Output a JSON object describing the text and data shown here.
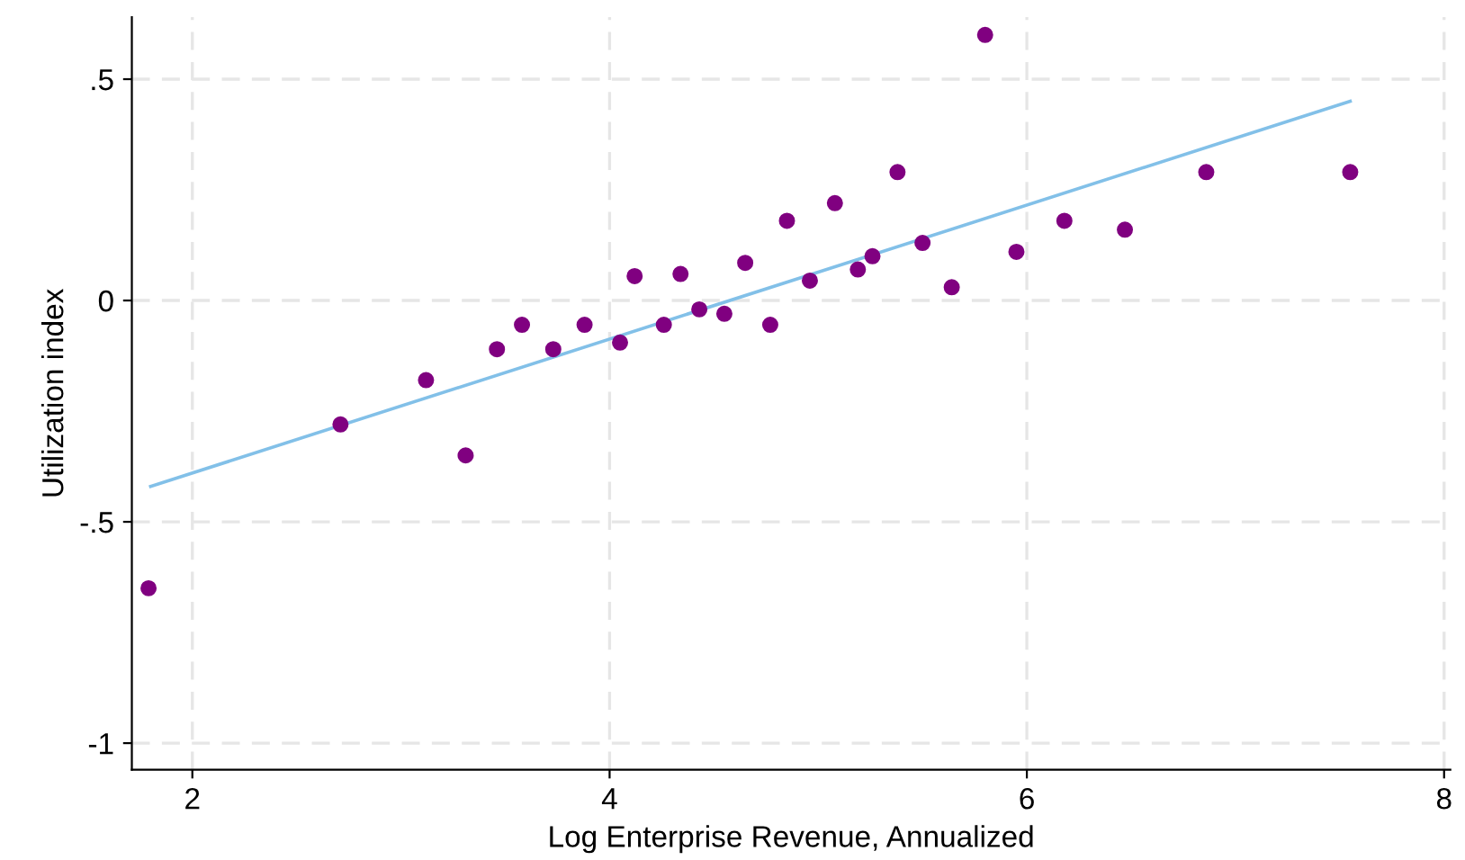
{
  "chart_data": {
    "type": "scatter",
    "xlabel": "Log Enterprise Revenue, Annualized",
    "ylabel": "Utilization index",
    "xlim": [
      1.71,
      8.03
    ],
    "ylim": [
      -1.06,
      0.64
    ],
    "xticks": [
      2,
      4,
      6,
      8
    ],
    "yticks": [
      {
        "value": -1,
        "label": "-1"
      },
      {
        "value": -0.5,
        "label": "-.5"
      },
      {
        "value": 0,
        "label": "0"
      },
      {
        "value": 0.5,
        "label": ".5"
      }
    ],
    "grid": true,
    "series": [
      {
        "color": "#800080",
        "marker": "circle",
        "x": [
          1.79,
          2.71,
          3.12,
          3.31,
          3.46,
          3.58,
          3.73,
          3.88,
          4.05,
          4.12,
          4.26,
          4.34,
          4.43,
          4.55,
          4.65,
          4.77,
          4.85,
          4.96,
          5.08,
          5.19,
          5.26,
          5.38,
          5.5,
          5.64,
          5.8,
          5.95,
          6.18,
          6.47,
          6.86,
          7.55
        ],
        "values": [
          -0.65,
          -0.28,
          -0.18,
          -0.35,
          -0.11,
          -0.055,
          -0.11,
          -0.055,
          -0.095,
          0.055,
          -0.055,
          0.06,
          -0.02,
          -0.03,
          0.085,
          -0.055,
          0.18,
          0.045,
          0.22,
          0.07,
          0.1,
          0.29,
          0.13,
          0.03,
          0.6,
          0.11,
          0.18,
          0.16,
          0.29,
          0.29
        ]
      },
      {
        "type": "line",
        "color": "#82c0e8",
        "line_style": "solid",
        "marker": "none",
        "x": [
          1.8,
          7.55
        ],
        "values": [
          -0.42,
          0.45
        ]
      }
    ]
  }
}
